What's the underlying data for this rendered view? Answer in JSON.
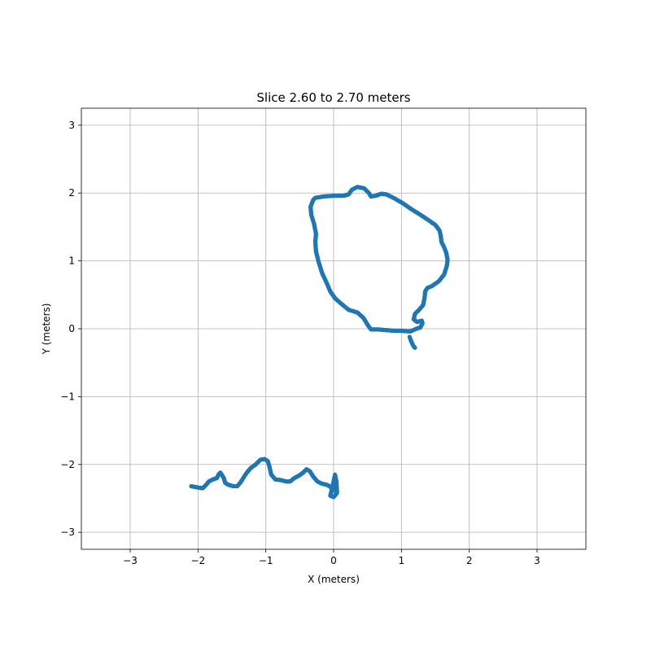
{
  "chart_data": {
    "type": "scatter",
    "title": "Slice 2.60 to 2.70 meters",
    "xlabel": "X (meters)",
    "ylabel": "Y (meters)",
    "xlim": [
      -3.72,
      3.72
    ],
    "ylim": [
      -3.25,
      3.25
    ],
    "xticks": [
      -3,
      -2,
      -1,
      0,
      1,
      2,
      3
    ],
    "yticks": [
      -3,
      -2,
      -1,
      0,
      1,
      2,
      3
    ],
    "xtick_labels": [
      "−3",
      "−2",
      "−1",
      "0",
      "1",
      "2",
      "3"
    ],
    "ytick_labels": [
      "−3",
      "−2",
      "−1",
      "0",
      "1",
      "2",
      "3"
    ],
    "grid": true,
    "color": "#1f77b4",
    "series": [
      {
        "points": [
          [
            -0.27,
            1.93
          ],
          [
            -0.15,
            1.95
          ],
          [
            0.0,
            1.96
          ],
          [
            0.15,
            1.96
          ],
          [
            0.22,
            1.98
          ],
          [
            0.27,
            2.05
          ],
          [
            0.35,
            2.09
          ],
          [
            0.45,
            2.07
          ],
          [
            0.52,
            2.0
          ],
          [
            0.55,
            1.95
          ],
          [
            0.62,
            1.96
          ],
          [
            0.7,
            1.99
          ],
          [
            0.78,
            1.98
          ],
          [
            0.9,
            1.92
          ],
          [
            1.02,
            1.85
          ],
          [
            1.15,
            1.76
          ],
          [
            1.28,
            1.68
          ],
          [
            1.4,
            1.6
          ],
          [
            1.5,
            1.53
          ],
          [
            1.56,
            1.45
          ],
          [
            1.58,
            1.37
          ],
          [
            1.59,
            1.28
          ],
          [
            1.63,
            1.2
          ],
          [
            1.66,
            1.12
          ],
          [
            1.68,
            1.02
          ],
          [
            1.67,
            0.93
          ],
          [
            1.63,
            0.8
          ],
          [
            1.55,
            0.7
          ],
          [
            1.45,
            0.63
          ],
          [
            1.38,
            0.6
          ],
          [
            1.35,
            0.55
          ],
          [
            1.34,
            0.45
          ],
          [
            1.32,
            0.35
          ],
          [
            1.26,
            0.28
          ],
          [
            1.2,
            0.22
          ],
          [
            1.18,
            0.14
          ],
          [
            1.23,
            0.1
          ],
          [
            1.3,
            0.12
          ],
          [
            1.31,
            0.08
          ],
          [
            1.28,
            0.02
          ],
          [
            1.22,
            0.0
          ],
          [
            1.13,
            -0.04
          ],
          [
            1.0,
            -0.03
          ],
          [
            0.9,
            -0.03
          ],
          [
            0.78,
            -0.02
          ],
          [
            0.65,
            -0.01
          ],
          [
            0.55,
            -0.01
          ],
          [
            0.5,
            0.06
          ],
          [
            0.44,
            0.16
          ],
          [
            0.35,
            0.24
          ],
          [
            0.22,
            0.28
          ],
          [
            0.1,
            0.38
          ],
          [
            0.02,
            0.45
          ],
          [
            -0.05,
            0.55
          ],
          [
            -0.1,
            0.67
          ],
          [
            -0.17,
            0.82
          ],
          [
            -0.22,
            0.98
          ],
          [
            -0.26,
            1.14
          ],
          [
            -0.27,
            1.28
          ],
          [
            -0.26,
            1.4
          ],
          [
            -0.29,
            1.55
          ],
          [
            -0.33,
            1.68
          ],
          [
            -0.34,
            1.8
          ],
          [
            -0.3,
            1.9
          ],
          [
            -0.27,
            1.93
          ],
          [
            1.12,
            -0.12
          ],
          [
            1.15,
            -0.2
          ],
          [
            1.18,
            -0.26
          ],
          [
            1.2,
            -0.28
          ]
        ]
      },
      {
        "points": [
          [
            -2.1,
            -2.32
          ],
          [
            -2.0,
            -2.34
          ],
          [
            -1.93,
            -2.35
          ],
          [
            -1.88,
            -2.3
          ],
          [
            -1.84,
            -2.25
          ],
          [
            -1.78,
            -2.22
          ],
          [
            -1.72,
            -2.2
          ],
          [
            -1.7,
            -2.15
          ],
          [
            -1.67,
            -2.12
          ],
          [
            -1.62,
            -2.2
          ],
          [
            -1.6,
            -2.27
          ],
          [
            -1.55,
            -2.3
          ],
          [
            -1.48,
            -2.32
          ],
          [
            -1.42,
            -2.32
          ],
          [
            -1.37,
            -2.26
          ],
          [
            -1.32,
            -2.18
          ],
          [
            -1.28,
            -2.12
          ],
          [
            -1.22,
            -2.05
          ],
          [
            -1.15,
            -2.0
          ],
          [
            -1.08,
            -1.93
          ],
          [
            -1.02,
            -1.92
          ],
          [
            -0.97,
            -1.95
          ],
          [
            -0.95,
            -2.02
          ],
          [
            -0.92,
            -2.15
          ],
          [
            -0.86,
            -2.22
          ],
          [
            -0.78,
            -2.23
          ],
          [
            -0.7,
            -2.25
          ],
          [
            -0.64,
            -2.25
          ],
          [
            -0.58,
            -2.2
          ],
          [
            -0.52,
            -2.17
          ],
          [
            -0.45,
            -2.12
          ],
          [
            -0.4,
            -2.07
          ],
          [
            -0.35,
            -2.1
          ],
          [
            -0.3,
            -2.18
          ],
          [
            -0.24,
            -2.25
          ],
          [
            -0.18,
            -2.28
          ],
          [
            -0.1,
            -2.3
          ],
          [
            -0.06,
            -2.32
          ],
          [
            -0.02,
            -2.36
          ],
          [
            0.02,
            -2.38
          ],
          [
            0.05,
            -2.42
          ],
          [
            0.0,
            -2.48
          ],
          [
            -0.05,
            -2.46
          ],
          [
            -0.02,
            -2.35
          ],
          [
            0.02,
            -2.15
          ],
          [
            0.04,
            -2.25
          ],
          [
            0.05,
            -2.4
          ]
        ]
      }
    ]
  }
}
